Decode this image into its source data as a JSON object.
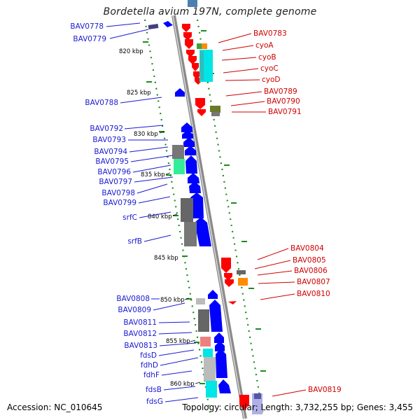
{
  "title": "Bordetella avium 197N, complete genome",
  "footer": {
    "accession": "Accession: NC_010645",
    "topology": "Topology: circular; Length: 3,732,255 bp; Genes: 3,455"
  },
  "colors": {
    "backbone": "#8a8a8a",
    "forward_strand": "#0000ff",
    "reverse_strand": "#ff0000",
    "tick": "#1f8a1f",
    "label_blue": "#1a1ad0",
    "label_red": "#d00000"
  },
  "kbp_markers": [
    "820 kbp",
    "825 kbp",
    "830 kbp",
    "835 kbp",
    "840 kbp",
    "845 kbp",
    "850 kbp",
    "855 kbp",
    "860 kbp"
  ],
  "left_labels": [
    "BAV0778",
    "BAV0779",
    "BAV0788",
    "BAV0792",
    "BAV0793",
    "BAV0794",
    "BAV0795",
    "BAV0796",
    "BAV0797",
    "BAV0798",
    "BAV0799",
    "srfC",
    "srfB",
    "BAV0808",
    "BAV0809",
    "BAV0811",
    "BAV0812",
    "BAV0813",
    "fdsD",
    "fdhD",
    "fdhF",
    "fdsB",
    "fdsG"
  ],
  "right_labels": [
    "BAV0783",
    "cyoA",
    "cyoB",
    "cyoC",
    "cyoD",
    "BAV0789",
    "BAV0790",
    "BAV0791",
    "BAV0804",
    "BAV0805",
    "BAV0806",
    "BAV0807",
    "BAV0810",
    "BAV0819"
  ]
}
